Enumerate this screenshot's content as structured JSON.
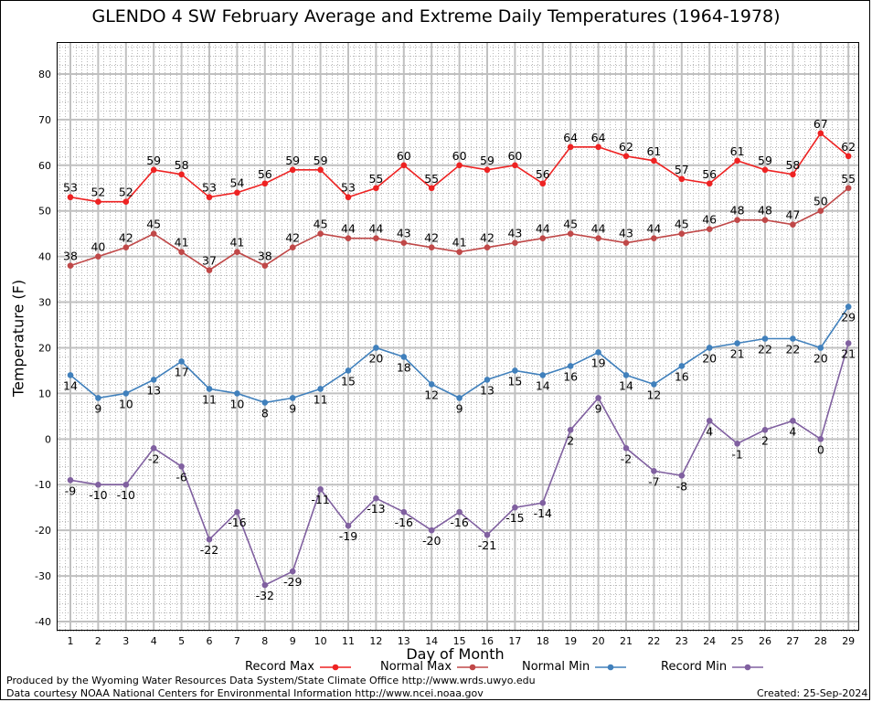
{
  "chart_data": {
    "type": "line",
    "title": "GLENDO 4 SW February Average and Extreme Daily Temperatures (1964-1978)",
    "xlabel": "Day of Month",
    "ylabel": "Temperature (F)",
    "ylim": [
      -42,
      87
    ],
    "y_ticks": [
      -40,
      -30,
      -20,
      -10,
      0,
      10,
      20,
      30,
      40,
      50,
      60,
      70,
      80
    ],
    "x": [
      1,
      2,
      3,
      4,
      5,
      6,
      7,
      8,
      9,
      10,
      11,
      12,
      13,
      14,
      15,
      16,
      17,
      18,
      19,
      20,
      21,
      22,
      23,
      24,
      25,
      26,
      27,
      28,
      29
    ],
    "grid": true,
    "legend_position": "bottom",
    "series": [
      {
        "name": "Record Max",
        "color": "#ee2222",
        "label_position": "above",
        "values": [
          53,
          52,
          52,
          59,
          58,
          53,
          54,
          56,
          59,
          59,
          53,
          55,
          60,
          55,
          60,
          59,
          60,
          56,
          64,
          64,
          62,
          61,
          57,
          56,
          61,
          59,
          58,
          67,
          62
        ]
      },
      {
        "name": "Normal Max",
        "color": "#c04848",
        "label_position": "above",
        "values": [
          38,
          40,
          42,
          45,
          41,
          37,
          41,
          38,
          42,
          45,
          44,
          44,
          43,
          42,
          41,
          42,
          43,
          44,
          45,
          44,
          43,
          44,
          45,
          46,
          48,
          48,
          47,
          50,
          55
        ]
      },
      {
        "name": "Normal Min",
        "color": "#4080bc",
        "label_position": "below",
        "values": [
          14,
          9,
          10,
          13,
          17,
          11,
          10,
          8,
          9,
          11,
          15,
          20,
          18,
          12,
          9,
          13,
          15,
          14,
          16,
          19,
          14,
          12,
          16,
          20,
          21,
          22,
          22,
          20,
          29
        ]
      },
      {
        "name": "Record Min",
        "color": "#8060a0",
        "label_position": "below",
        "values": [
          -9,
          -10,
          -10,
          -2,
          -6,
          -22,
          -16,
          -32,
          -29,
          -11,
          -19,
          -13,
          -16,
          -20,
          -16,
          -21,
          -15,
          -14,
          2,
          9,
          -2,
          -7,
          -8,
          4,
          -1,
          2,
          4,
          0,
          21
        ]
      }
    ]
  },
  "footer": {
    "produced_by": "Produced by the Wyoming Water Resources Data System/State Climate Office http://www.wrds.uwyo.edu",
    "data_courtesy": "Data courtesy NOAA National Centers for Environmental Information http://www.ncei.noaa.gov",
    "created": "Created:  25-Sep-2024"
  }
}
